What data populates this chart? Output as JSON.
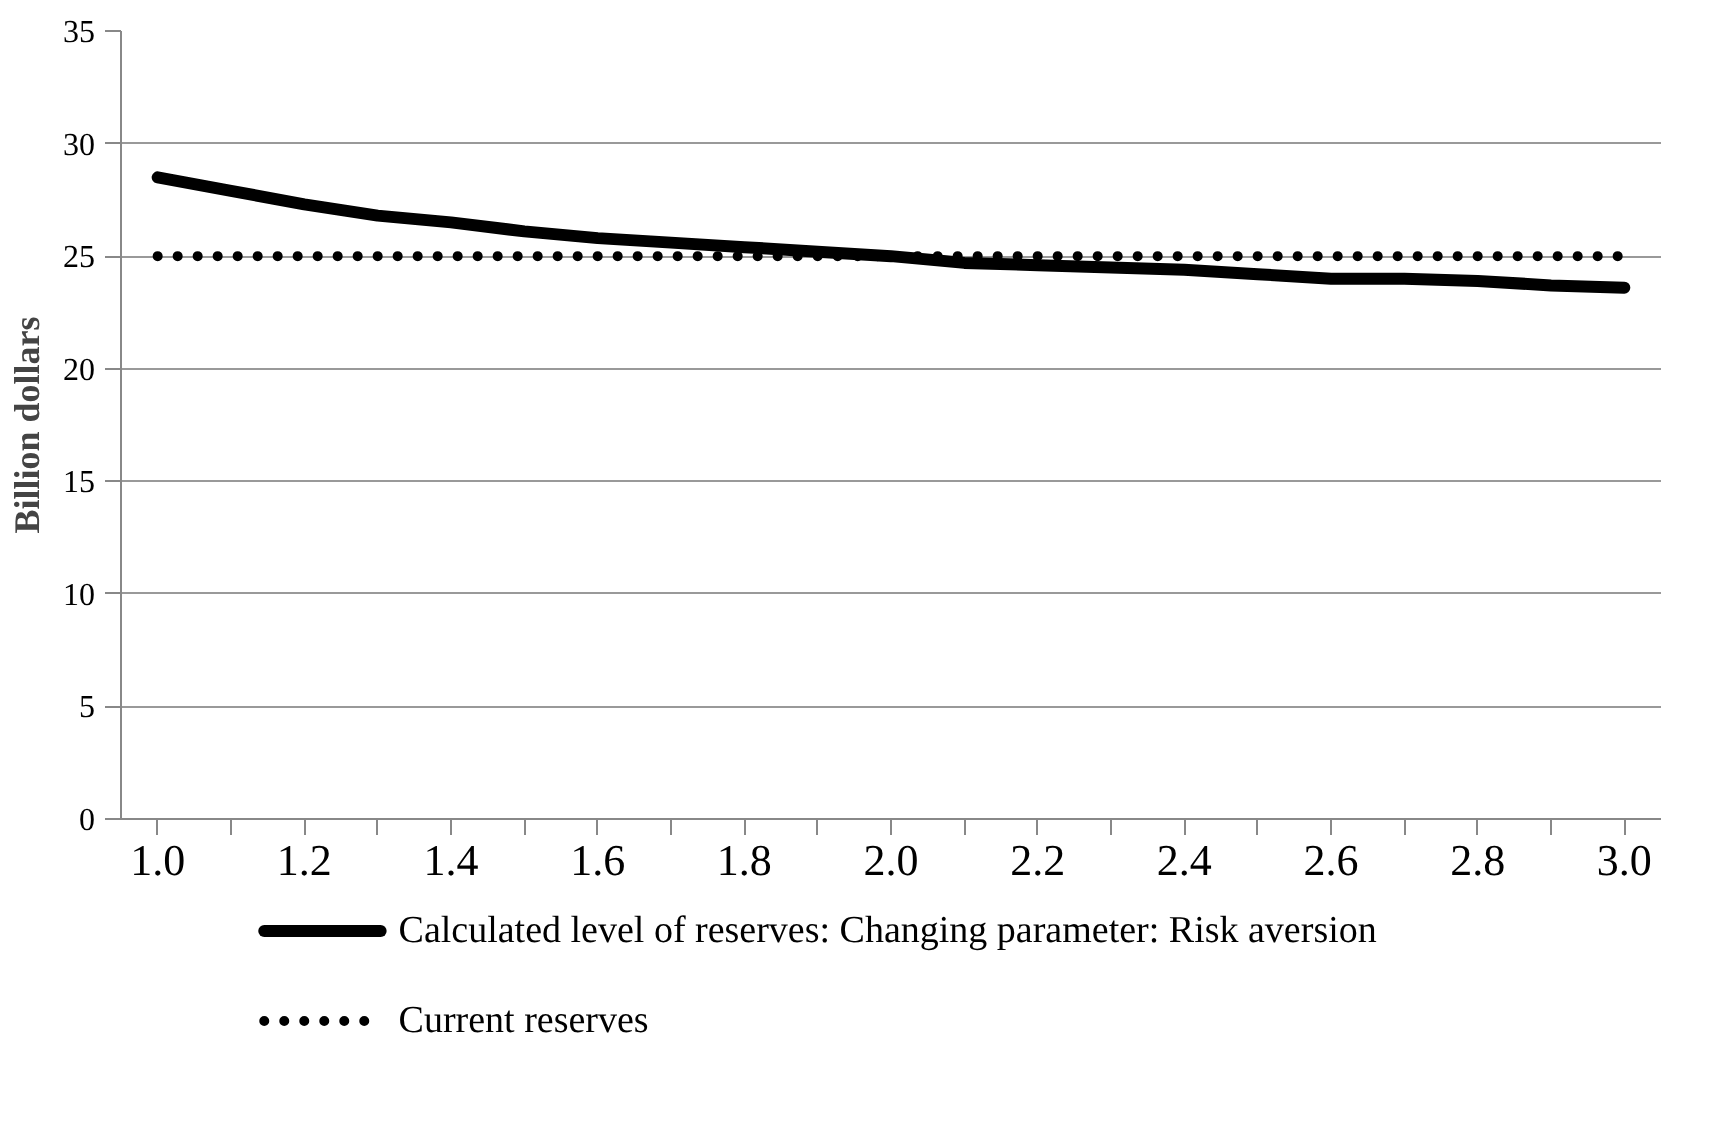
{
  "chart_data": {
    "type": "line",
    "ylabel": "Billion dollars",
    "categories": [
      "1.0",
      null,
      "1.2",
      null,
      "1.4",
      null,
      "1.6",
      null,
      "1.8",
      null,
      "2.0",
      null,
      "2.2",
      null,
      "2.4",
      null,
      "2.6",
      null,
      "2.8",
      null,
      "3.0"
    ],
    "series": [
      {
        "name": "Calculated level of reserves: Changing parameter: Risk aversion",
        "color": "#000000",
        "line_style": "solid",
        "values": [
          28.5,
          27.9,
          27.3,
          26.8,
          26.5,
          26.1,
          25.8,
          25.6,
          25.4,
          25.2,
          25.0,
          24.7,
          24.6,
          24.5,
          24.4,
          24.2,
          24.0,
          24.0,
          23.9,
          23.7,
          23.6
        ]
      },
      {
        "name": "Current reserves",
        "color": "#000000",
        "line_style": "dotted",
        "values": [
          25,
          25,
          25,
          25,
          25,
          25,
          25,
          25,
          25,
          25,
          25,
          25,
          25,
          25,
          25,
          25,
          25,
          25,
          25,
          25,
          25
        ]
      }
    ],
    "ylim": [
      0,
      35
    ],
    "yticks": [
      0,
      5,
      10,
      15,
      20,
      25,
      30,
      35
    ],
    "grid": "y",
    "legend": "bottom",
    "marker": "none"
  }
}
